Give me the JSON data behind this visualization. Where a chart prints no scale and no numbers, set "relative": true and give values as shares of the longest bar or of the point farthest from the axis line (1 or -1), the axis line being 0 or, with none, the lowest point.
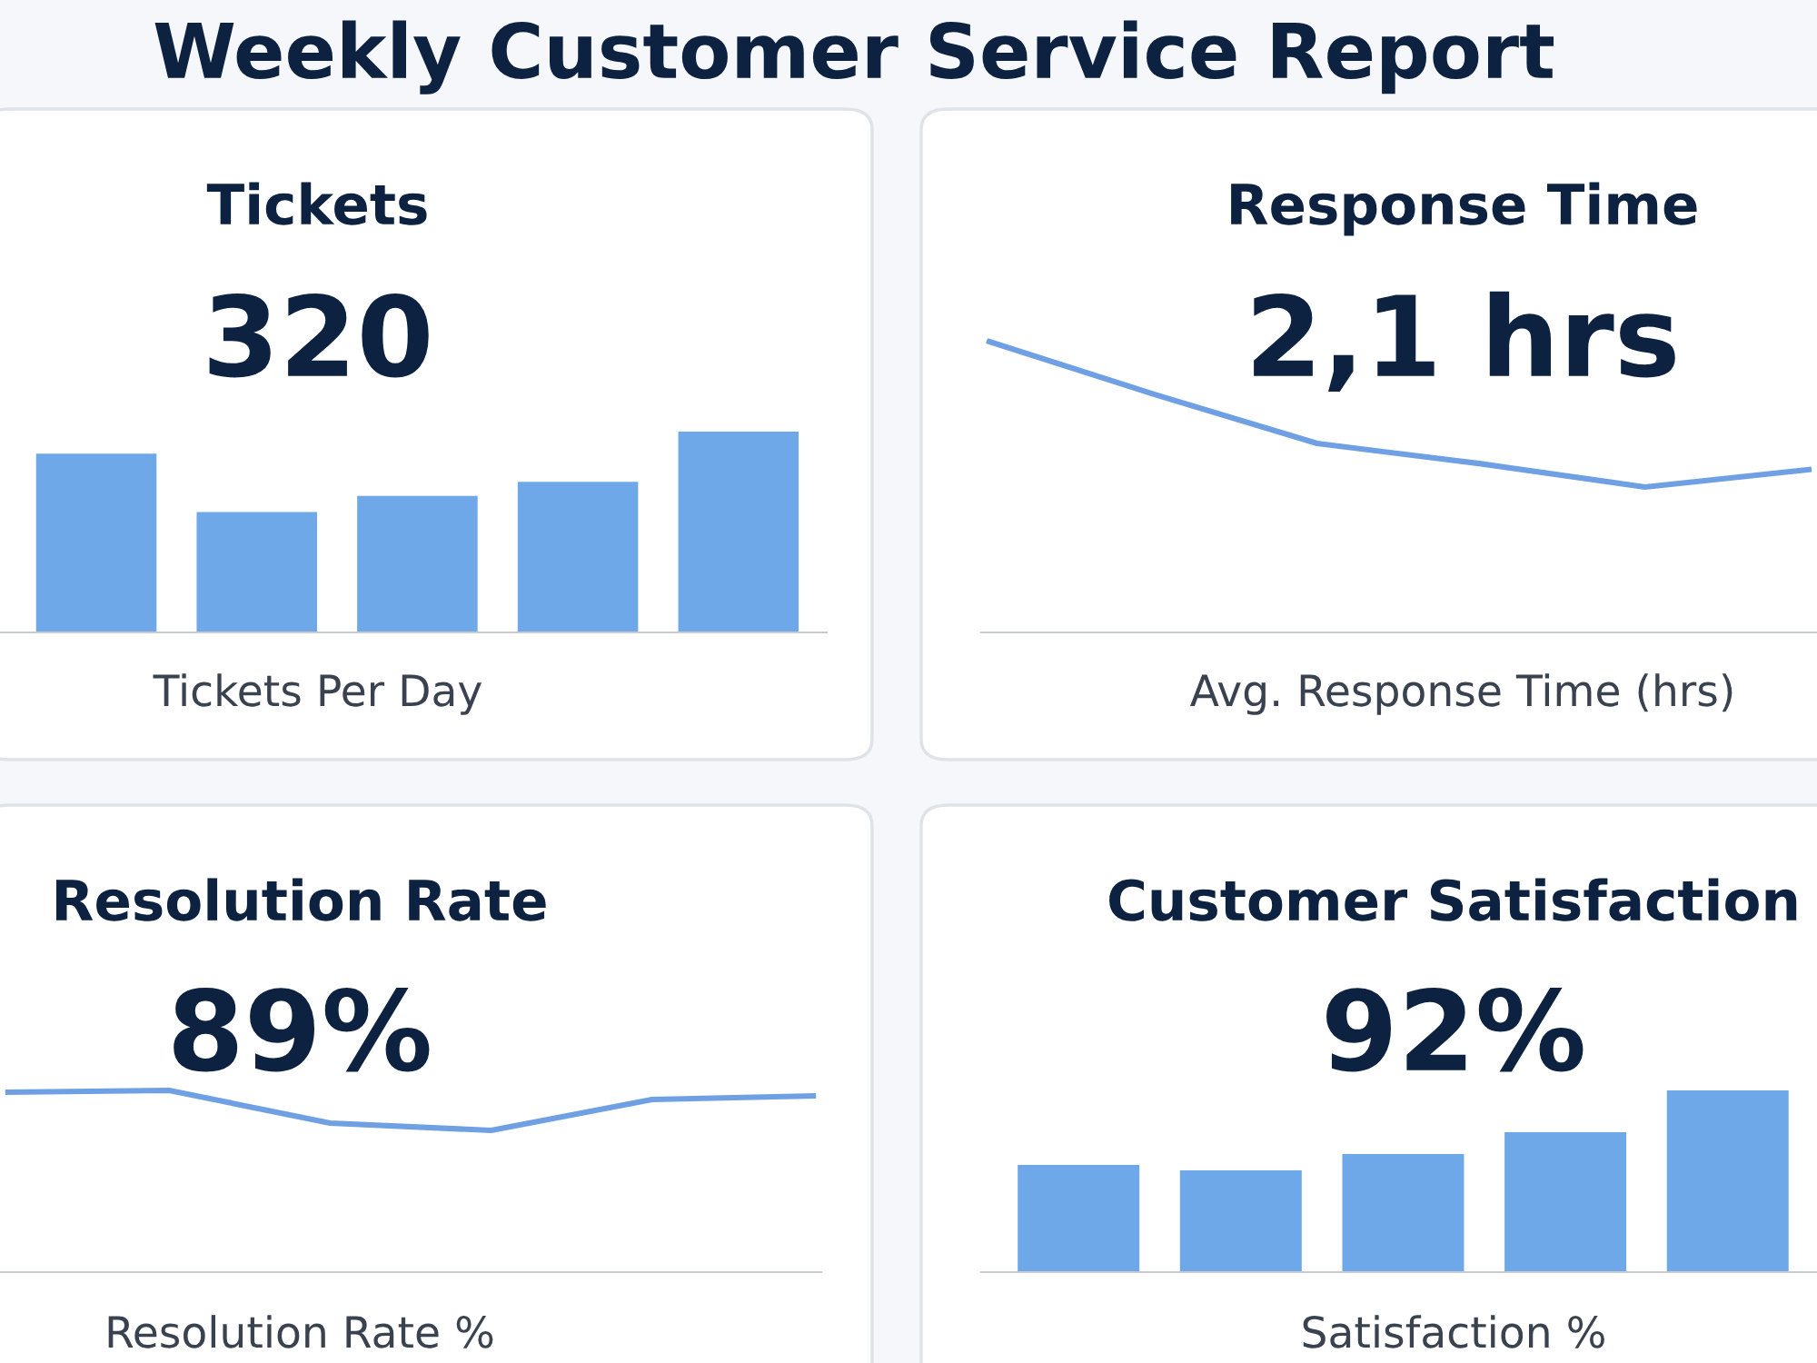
{
  "chart_data": [
    {
      "type": "other",
      "title": "Weekly Customer Service Report"
    },
    {
      "type": "bar",
      "title": "Tickets",
      "subtitle": "320",
      "xlabel": "Tickets Per Day",
      "relative": true,
      "categories": [
        null,
        null,
        null,
        null,
        null
      ],
      "values": [
        0.89,
        0.6,
        0.68,
        0.75,
        1
      ],
      "color": "#6fa8e8"
    },
    {
      "type": "line",
      "title": "Response Time",
      "subtitle": "2,1 hrs",
      "xlabel": "Avg. Response Time (hrs)",
      "relative": true,
      "categories": [
        null,
        null,
        null,
        null,
        null,
        null
      ],
      "values": [
        1,
        0.82,
        0.65,
        0.58,
        0.5,
        0.56
      ],
      "color": "#6fa0e4"
    },
    {
      "type": "line",
      "title": "Resolution Rate",
      "subtitle": "89%",
      "xlabel": "Resolution Rate %",
      "relative": true,
      "categories": [
        null,
        null,
        null,
        null,
        null,
        null
      ],
      "values": [
        0.99,
        1,
        0.82,
        0.78,
        0.95,
        0.97
      ],
      "color": "#6fa0e4"
    },
    {
      "type": "bar",
      "title": "Customer Satisfaction",
      "subtitle": "92%",
      "xlabel": "Satisfaction %",
      "relative": true,
      "categories": [
        null,
        null,
        null,
        null,
        null
      ],
      "values": [
        0.59,
        0.56,
        0.65,
        0.77,
        1
      ],
      "color": "#6fa8e8"
    }
  ]
}
